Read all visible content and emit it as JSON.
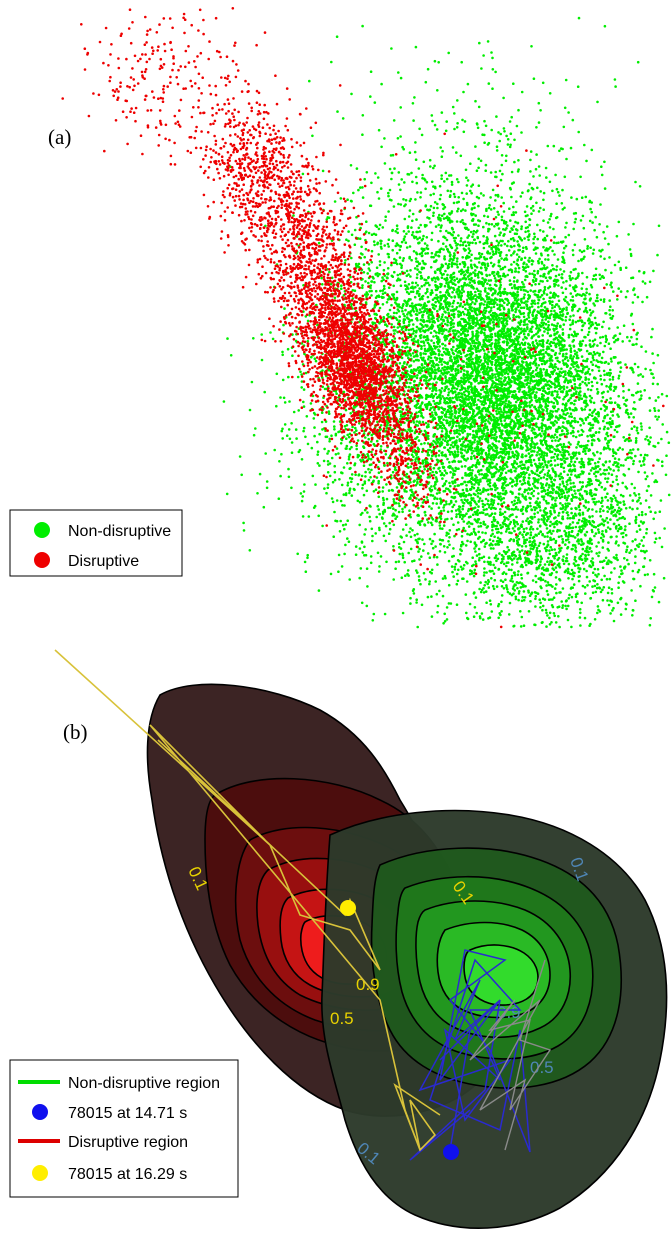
{
  "chart_data": [
    {
      "type": "scatter",
      "panel_label": "(a)",
      "title": "",
      "xlabel": "",
      "ylabel": "",
      "grid": false,
      "axes_visible": false,
      "legend_position": "bottom-left",
      "series": [
        {
          "name": "Non-disruptive",
          "color": "#00ee00",
          "clusters": [
            {
              "center": [
                490,
                360
              ],
              "spread": [
                62,
                68
              ],
              "count": 5200
            },
            {
              "center": [
                510,
                470
              ],
              "spread": [
                75,
                70
              ],
              "count": 2600
            },
            {
              "center": [
                560,
                545
              ],
              "spread": [
                55,
                45
              ],
              "count": 900
            },
            {
              "center": [
                455,
                260
              ],
              "spread": [
                70,
                55
              ],
              "count": 900
            },
            {
              "center": [
                380,
                420
              ],
              "spread": [
                55,
                65
              ],
              "count": 800
            },
            {
              "center": [
                470,
                140
              ],
              "spread": [
                75,
                60
              ],
              "count": 170
            }
          ]
        },
        {
          "name": "Disruptive",
          "color": "#ee0000",
          "clusters": [
            {
              "center": [
                355,
                365
              ],
              "spread": [
                22,
                42
              ],
              "count": 2000
            },
            {
              "center": [
                310,
                265
              ],
              "spread": [
                25,
                55
              ],
              "count": 1000
            },
            {
              "center": [
                255,
                165
              ],
              "spread": [
                26,
                38
              ],
              "count": 550
            },
            {
              "center": [
                165,
                75
              ],
              "spread": [
                40,
                35
              ],
              "count": 200
            },
            {
              "center": [
                395,
                450
              ],
              "spread": [
                18,
                40
              ],
              "count": 300
            },
            {
              "center": [
                470,
                380
              ],
              "spread": [
                80,
                90
              ],
              "count": 150
            }
          ]
        }
      ]
    },
    {
      "type": "contour",
      "panel_label": "(b)",
      "title": "",
      "xlabel": "",
      "ylabel": "",
      "grid": false,
      "axes_visible": false,
      "legend_position": "bottom-left",
      "contour_levels": [
        0.1,
        0.3,
        0.5,
        0.7,
        0.9
      ],
      "contour_labels": {
        "disruptive": [
          "0.1",
          "0.1",
          "0.5",
          "0.9"
        ],
        "non_disruptive": [
          "0.1",
          "0.5",
          "0.9",
          "0.1"
        ]
      },
      "regions": [
        {
          "name": "Non-disruptive region",
          "color": "#00dd00"
        },
        {
          "name": "Disruptive region",
          "color": "#dd0000"
        }
      ],
      "trajectories": [
        {
          "name": "78015 at 14.71 s",
          "marker_color": "#1010ee",
          "line_color": "#2a2ad0"
        },
        {
          "name": "78015 at 16.29 s",
          "marker_color": "#ffee00",
          "line_color": "#d8c23a"
        }
      ]
    }
  ]
}
